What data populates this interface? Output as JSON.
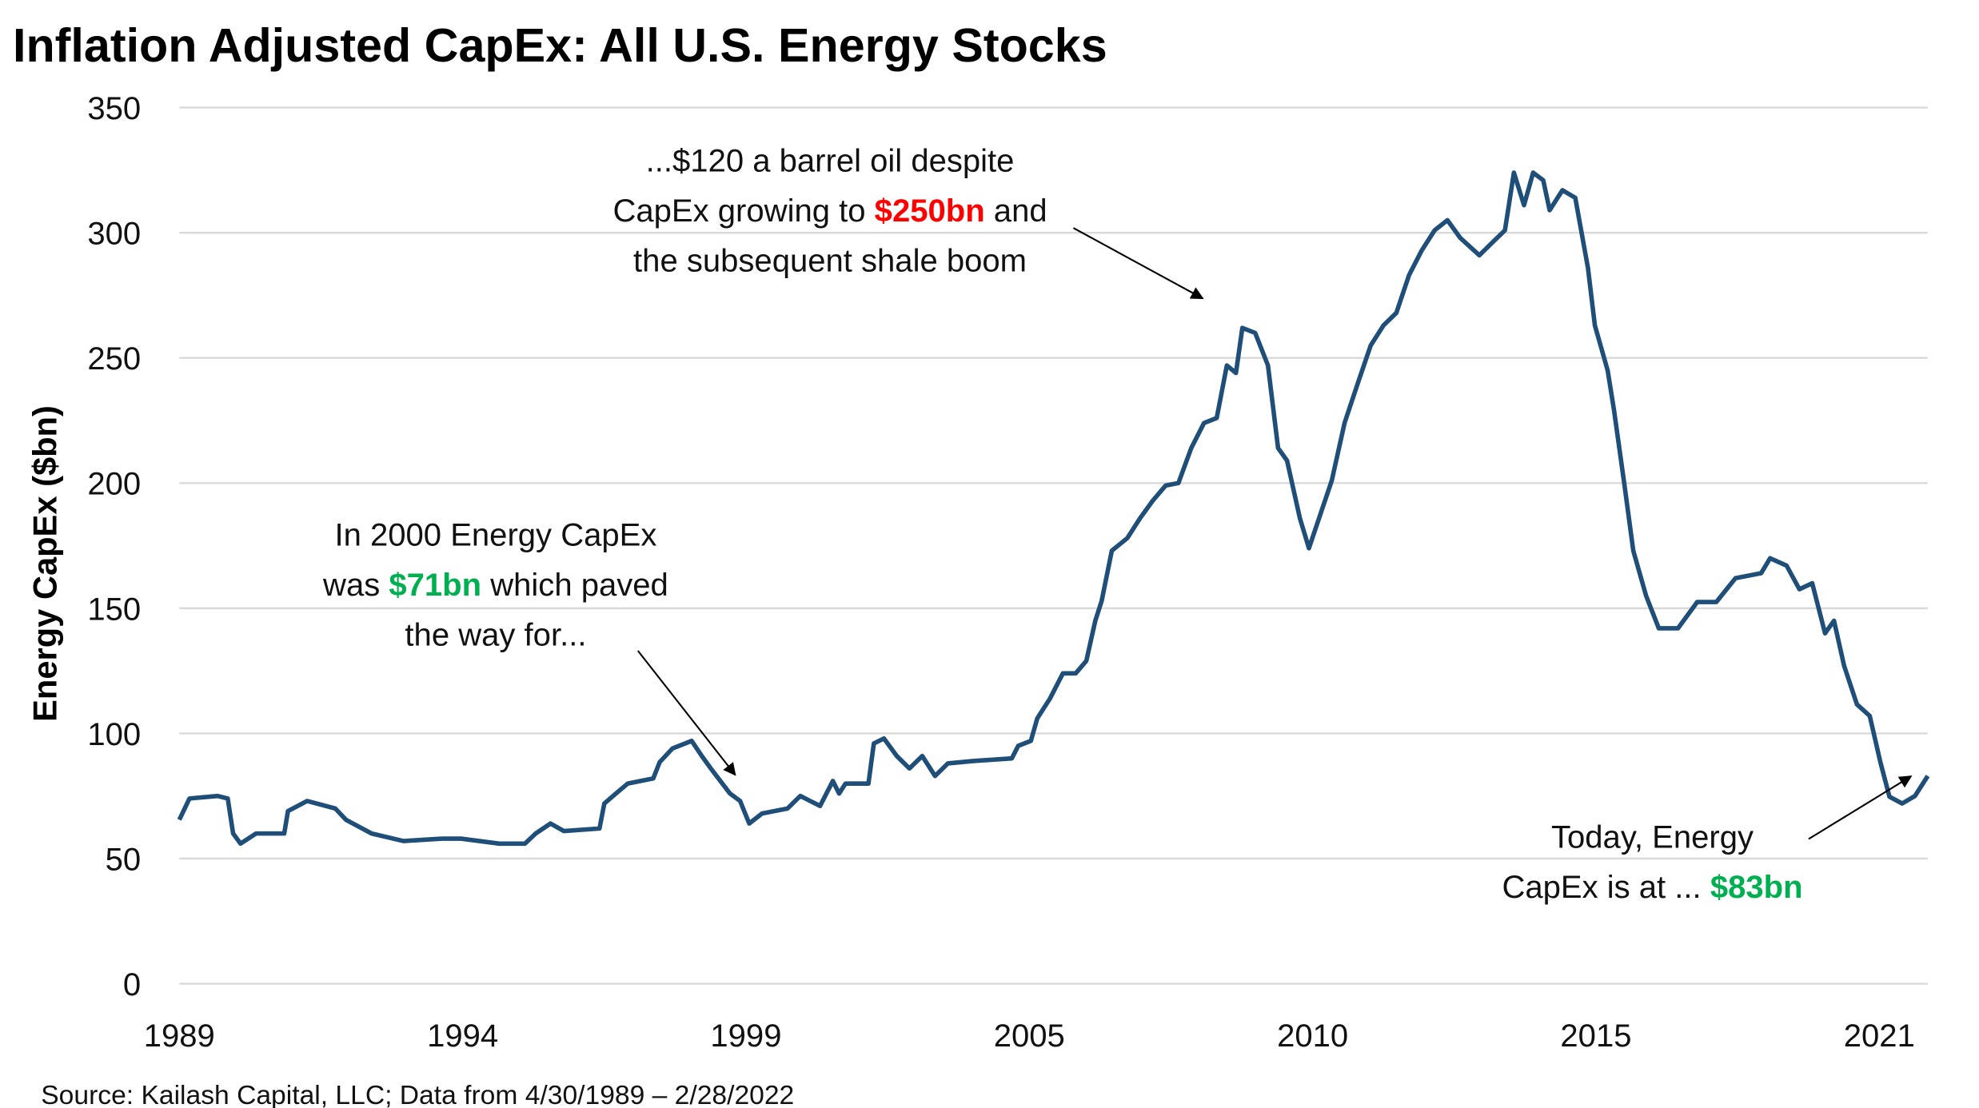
{
  "chart_data": {
    "type": "line",
    "title": "Inflation Adjusted CapEx: All U.S. Energy Stocks",
    "ylabel": "Energy CapEx ($bn)",
    "xlabel": "",
    "ylim": [
      0,
      350
    ],
    "yticks": [
      "0",
      "50",
      "100",
      "150",
      "200",
      "250",
      "300",
      "350"
    ],
    "xticks": [
      "1989",
      "1994",
      "1999",
      "2005",
      "2010",
      "2015",
      "2021"
    ],
    "grid": "horizontal",
    "line_color": "#1f4e79",
    "source": "Source: Kailash Capital, LLC; Data from 4/30/1989 – 2/28/2022",
    "annotations": {
      "a2000": {
        "line1": "In 2000 Energy CapEx",
        "line2_pre": "was ",
        "line2_hl": "$71bn",
        "line2_post": " which paved",
        "line3": "the way for..."
      },
      "a2008": {
        "line1": "...$120 a barrel oil despite",
        "line2_pre": "CapEx growing to ",
        "line2_hl": "$250bn",
        "line2_post": " and",
        "line3": "the subsequent shale boom"
      },
      "today": {
        "line1": "Today, Energy",
        "line2_pre": "CapEx is at ... ",
        "line2_hl": "$83bn"
      }
    },
    "highlight_colors": {
      "red": "#ff0000",
      "green": "#00b050"
    },
    "series": [
      {
        "x": [
          1989.33,
          1989.52,
          1990.05,
          1990.24,
          1990.34,
          1990.48,
          1990.77,
          1991.3,
          1991.37,
          1991.73,
          1992.26,
          1992.46,
          1992.94,
          1993.54,
          1994.26,
          1994.62,
          1995.34,
          1995.82,
          1996.02,
          1996.3,
          1996.55,
          1997.22,
          1997.31,
          1997.51,
          1997.75,
          1998.23,
          1998.35,
          1998.59,
          1998.95,
          1999.14,
          1999.31,
          1999.67,
          1999.86,
          2000.03,
          2000.27,
          2000.75,
          2000.99,
          2001.36,
          2001.6,
          2001.72,
          2001.84,
          2002.27,
          2002.37,
          2002.56,
          2002.8,
          2003.04,
          2003.28,
          2003.52,
          2003.76,
          2004.24,
          2004.96,
          2005.08,
          2005.32,
          2005.44,
          2005.68,
          2005.92,
          2006.16,
          2006.36,
          2006.53,
          2006.65,
          2006.84,
          2007.13,
          2007.37,
          2007.61,
          2007.85,
          2008.09,
          2008.33,
          2008.57,
          2008.81,
          2009.0,
          2009.17,
          2009.29,
          2009.53,
          2009.77,
          2009.96,
          2010.13,
          2010.37,
          2010.54,
          2010.73,
          2010.97,
          2011.21,
          2011.46,
          2011.7,
          2011.94,
          2012.18,
          2012.42,
          2012.66,
          2012.9,
          2013.14,
          2013.38,
          2013.74,
          2013.98,
          2014.22,
          2014.39,
          2014.58,
          2014.75,
          2014.94,
          2015.06,
          2015.3,
          2015.54,
          2015.78,
          2015.91,
          2016.15,
          2016.27,
          2016.46,
          2016.63,
          2016.87,
          2017.11,
          2017.47,
          2017.83,
          2018.19,
          2018.55,
          2019.03,
          2019.2,
          2019.51,
          2019.75,
          2019.99,
          2020.23,
          2020.4,
          2020.59,
          2020.83,
          2021.07,
          2021.27,
          2021.44,
          2021.68,
          2021.92,
          2022.16
        ],
        "y": [
          65.5,
          74,
          75,
          74,
          60,
          56,
          60,
          60,
          69,
          73,
          70,
          65.5,
          60,
          57,
          58,
          58,
          56,
          56,
          60,
          64,
          61,
          62,
          72,
          75.7,
          80,
          82,
          88.5,
          94,
          97,
          91,
          86,
          76,
          73,
          64,
          68,
          70,
          75,
          71,
          81,
          76,
          80,
          80,
          96,
          98,
          91,
          86,
          91,
          83,
          88,
          89,
          90,
          95,
          97,
          106,
          114,
          124,
          124,
          129,
          145,
          153,
          173,
          178,
          186,
          193,
          199,
          200,
          214,
          224,
          226,
          247,
          244,
          262,
          260,
          247,
          214,
          209,
          186,
          174,
          186,
          201,
          224,
          240,
          255,
          263,
          268,
          283,
          293,
          301,
          305,
          298,
          291,
          296,
          301,
          324,
          311,
          324,
          321,
          309,
          317,
          314,
          286,
          263,
          245,
          229,
          200,
          173,
          155,
          142,
          142,
          152.5,
          152.5,
          162,
          164,
          170,
          167,
          157.6,
          160,
          140,
          145,
          127,
          111.6,
          107,
          88.5,
          74.7,
          72,
          75,
          83
        ]
      }
    ]
  }
}
